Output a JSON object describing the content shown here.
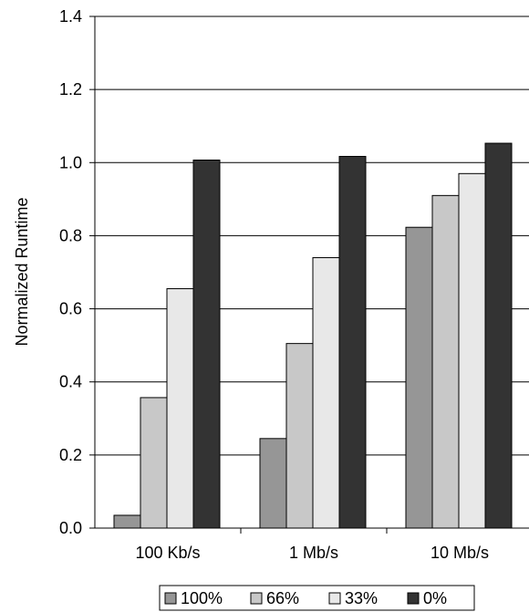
{
  "chart_data": {
    "type": "bar",
    "title": "",
    "xlabel": "",
    "ylabel": "Normalized Runtime",
    "ylim": [
      0,
      1.4
    ],
    "yticks": [
      "0.0",
      "0.2",
      "0.4",
      "0.6",
      "0.8",
      "1.0",
      "1.2",
      "1.4"
    ],
    "grid": true,
    "legend_position": "bottom",
    "categories": [
      "100 Kb/s",
      "1 Mb/s",
      "10 Mb/s"
    ],
    "series": [
      {
        "name": "100%",
        "color": "#969696",
        "values": [
          0.035,
          0.245,
          0.823
        ]
      },
      {
        "name": "66%",
        "color": "#c8c8c8",
        "values": [
          0.357,
          0.505,
          0.91
        ]
      },
      {
        "name": "33%",
        "color": "#e8e8e8",
        "values": [
          0.655,
          0.74,
          0.97
        ]
      },
      {
        "name": "0%",
        "color": "#333333",
        "values": [
          1.007,
          1.017,
          1.053
        ]
      }
    ]
  }
}
